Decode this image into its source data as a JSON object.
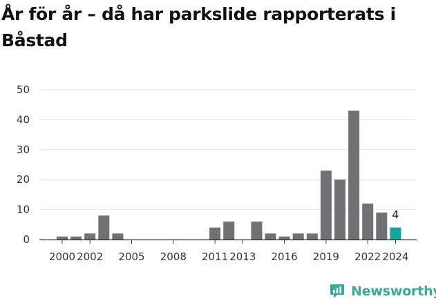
{
  "title": "År för år – då har parkslide rapporterats i Båstad",
  "brand": {
    "name": "Newsworthy",
    "icon": "newsworthy-logo-icon",
    "color": "#3aa89a"
  },
  "colors": {
    "bar": "#717075",
    "highlight": "#17a398",
    "grid": "#e3e3e3",
    "axis": "#333333",
    "text": "#333333"
  },
  "chart_data": {
    "type": "bar",
    "title": "År för år – då har parkslide rapporterats i Båstad",
    "xlabel": "",
    "ylabel": "",
    "categories": [
      "2000",
      "2001",
      "2002",
      "2003",
      "2004",
      "2005",
      "2006",
      "2007",
      "2008",
      "2009",
      "2010",
      "2011",
      "2012",
      "2013",
      "2014",
      "2015",
      "2016",
      "2017",
      "2018",
      "2019",
      "2020",
      "2021",
      "2022",
      "2023",
      "2024"
    ],
    "values": [
      1,
      1,
      2,
      8,
      2,
      0,
      0,
      0,
      0,
      0,
      0,
      4,
      6,
      0,
      6,
      2,
      1,
      2,
      2,
      23,
      20,
      43,
      12,
      9,
      4
    ],
    "x_tick_labels": [
      "2000",
      "2002",
      "2005",
      "2008",
      "2011",
      "2013",
      "2016",
      "2019",
      "2022",
      "2024"
    ],
    "y_ticks": [
      "0",
      "10",
      "20",
      "30",
      "40",
      "50"
    ],
    "ylim": [
      0,
      50
    ],
    "grid": true,
    "legend": "none",
    "highlight": {
      "category": "2024",
      "value_label": "4"
    }
  }
}
